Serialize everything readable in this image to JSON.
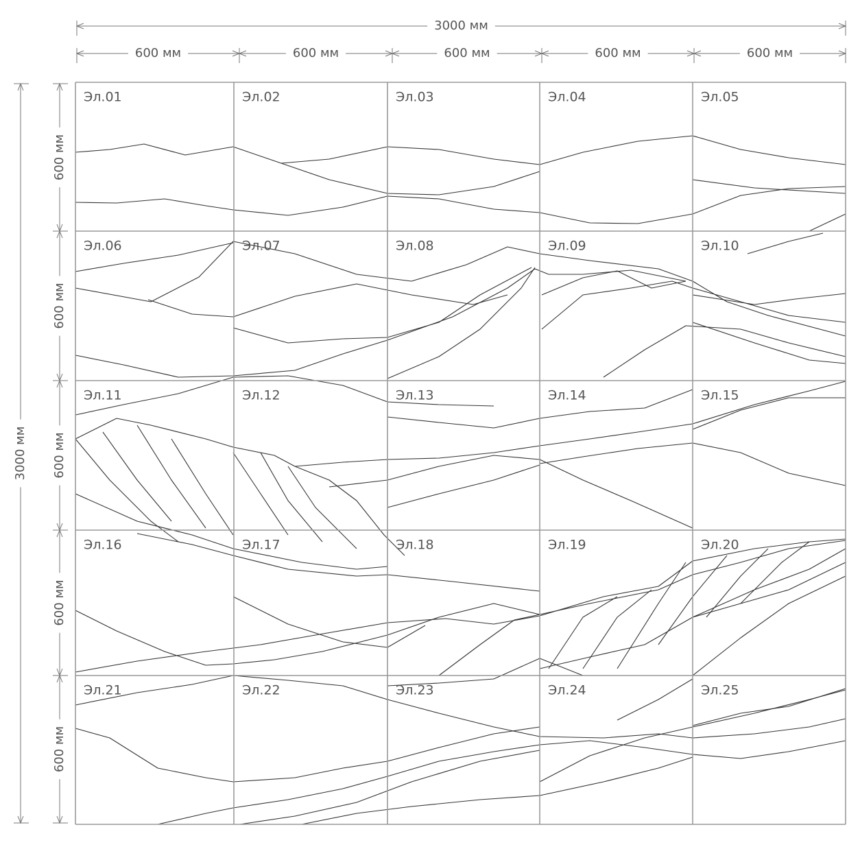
{
  "dimensions": {
    "total_width": "3000 мм",
    "widths": [
      "600 мм",
      "600 мм",
      "600 мм",
      "600 мм",
      "600 мм"
    ],
    "total_height": "3000 мм",
    "heights": [
      "600 мм",
      "600 мм",
      "600 мм",
      "600 мм",
      "600 мм"
    ]
  },
  "panels": [
    "Эл.01",
    "Эл.02",
    "Эл.03",
    "Эл.04",
    "Эл.05",
    "Эл.06",
    "Эл.07",
    "Эл.08",
    "Эл.09",
    "Эл.10",
    "Эл.11",
    "Эл.12",
    "Эл.13",
    "Эл.14",
    "Эл.15",
    "Эл.16",
    "Эл.17",
    "Эл.18",
    "Эл.19",
    "Эл.20",
    "Эл.21",
    "Эл.22",
    "Эл.23",
    "Эл.24",
    "Эл.25"
  ]
}
